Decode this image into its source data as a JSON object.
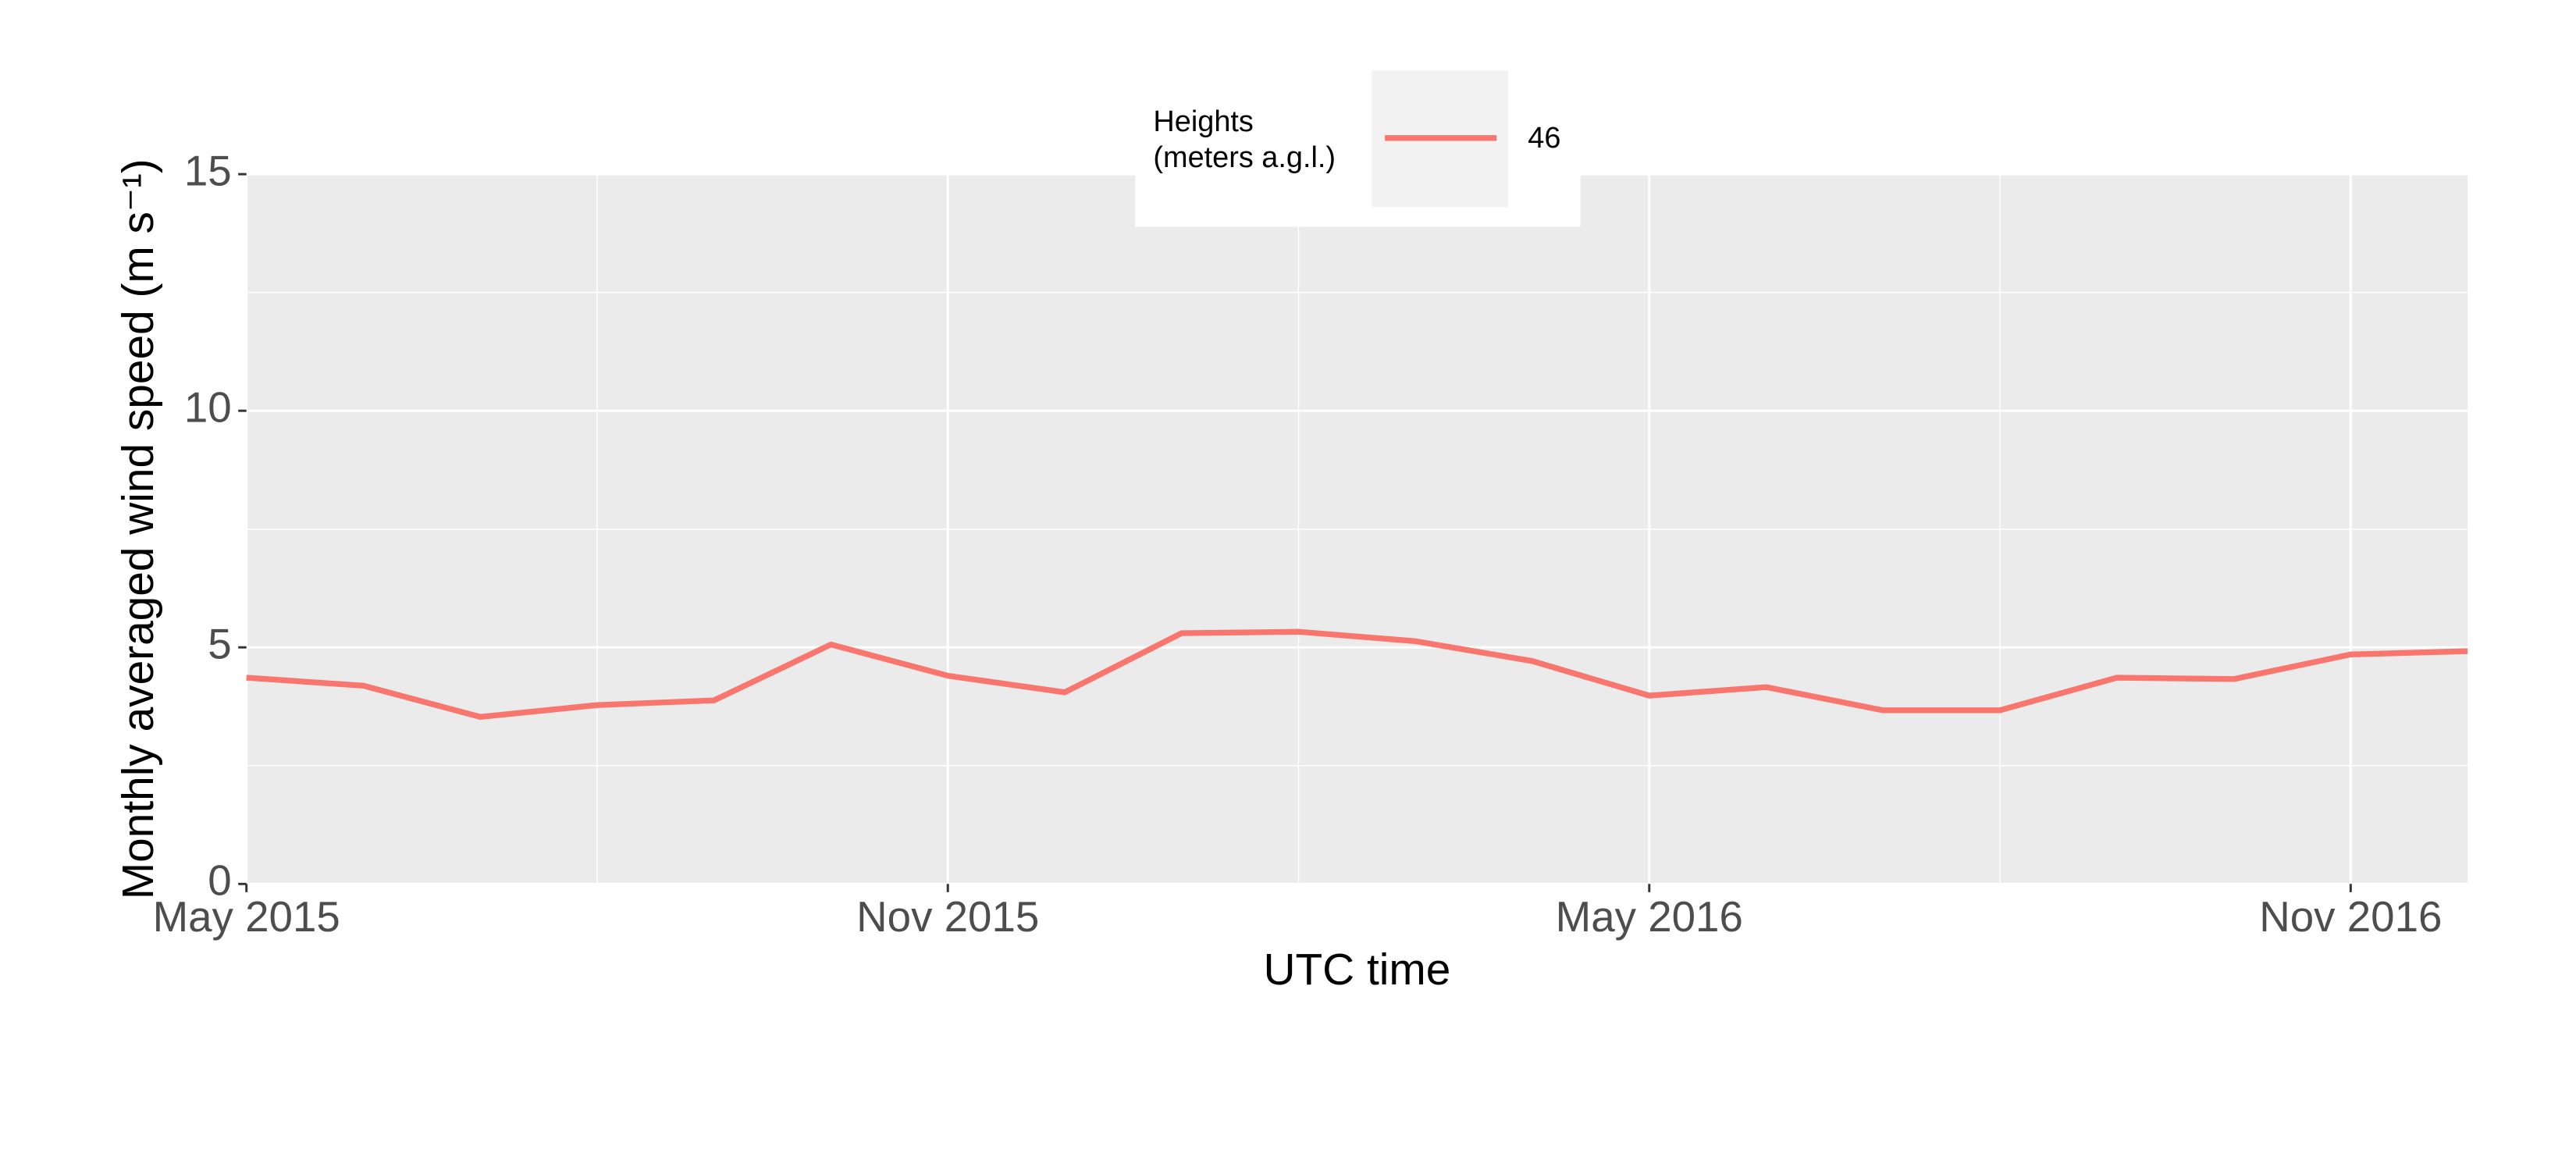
{
  "chart_data": {
    "type": "line",
    "x": [
      "2015-05",
      "2015-06",
      "2015-07",
      "2015-08",
      "2015-09",
      "2015-10",
      "2015-11",
      "2015-12",
      "2016-01",
      "2016-02",
      "2016-03",
      "2016-04",
      "2016-05",
      "2016-06",
      "2016-07",
      "2016-08",
      "2016-09",
      "2016-10",
      "2016-11",
      "2016-12"
    ],
    "series": [
      {
        "name": "46",
        "color": "#f8766d",
        "values": [
          4.36,
          4.19,
          3.53,
          3.78,
          3.88,
          5.06,
          4.4,
          4.05,
          5.3,
          5.33,
          5.13,
          4.71,
          3.98,
          4.16,
          3.67,
          3.67,
          4.36,
          4.33,
          4.85,
          4.92
        ]
      }
    ],
    "xlim": [
      "2015-05",
      "2016-12"
    ],
    "xticks": [
      {
        "value": "2015-05",
        "label": "May 2015"
      },
      {
        "value": "2015-11",
        "label": "Nov 2015"
      },
      {
        "value": "2016-05",
        "label": "May 2016"
      },
      {
        "value": "2016-11",
        "label": "Nov 2016"
      }
    ],
    "ylim": [
      0,
      15
    ],
    "yticks": [
      0,
      5,
      10,
      15
    ],
    "xlabel": "UTC time",
    "ylabel": "Monthly averaged wind speed (m s⁻¹)",
    "legend_title": [
      "Heights",
      "(meters a.g.l.)"
    ],
    "legend_position": "top",
    "grid": true
  }
}
